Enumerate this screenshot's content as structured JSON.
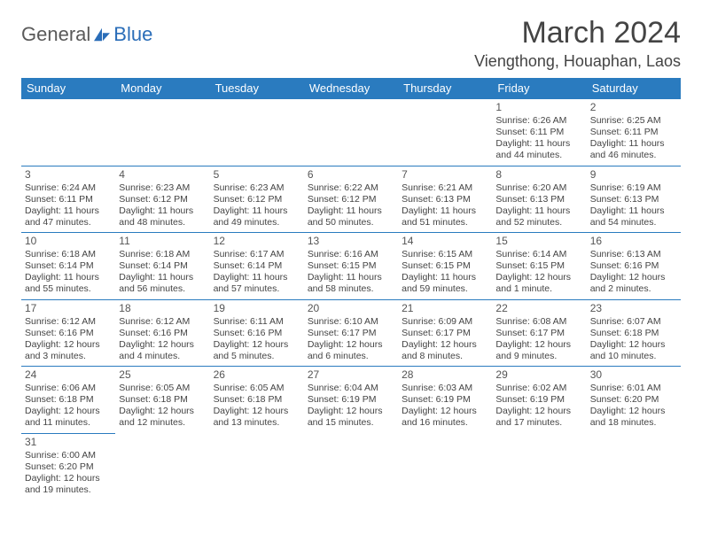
{
  "logo": {
    "text1": "General",
    "text2": "Blue"
  },
  "title": "March 2024",
  "location": "Viengthong, Houaphan, Laos",
  "columns": [
    "Sunday",
    "Monday",
    "Tuesday",
    "Wednesday",
    "Thursday",
    "Friday",
    "Saturday"
  ],
  "colors": {
    "header_bg": "#2a7bbf",
    "header_text": "#ffffff",
    "border": "#2a7bbf",
    "logo_gray": "#5a5a5a",
    "logo_blue": "#2a6db8"
  },
  "weeks": [
    [
      null,
      null,
      null,
      null,
      null,
      {
        "d": "1",
        "sr": "6:26 AM",
        "ss": "6:11 PM",
        "dl": "11 hours and 44 minutes."
      },
      {
        "d": "2",
        "sr": "6:25 AM",
        "ss": "6:11 PM",
        "dl": "11 hours and 46 minutes."
      }
    ],
    [
      {
        "d": "3",
        "sr": "6:24 AM",
        "ss": "6:11 PM",
        "dl": "11 hours and 47 minutes."
      },
      {
        "d": "4",
        "sr": "6:23 AM",
        "ss": "6:12 PM",
        "dl": "11 hours and 48 minutes."
      },
      {
        "d": "5",
        "sr": "6:23 AM",
        "ss": "6:12 PM",
        "dl": "11 hours and 49 minutes."
      },
      {
        "d": "6",
        "sr": "6:22 AM",
        "ss": "6:12 PM",
        "dl": "11 hours and 50 minutes."
      },
      {
        "d": "7",
        "sr": "6:21 AM",
        "ss": "6:13 PM",
        "dl": "11 hours and 51 minutes."
      },
      {
        "d": "8",
        "sr": "6:20 AM",
        "ss": "6:13 PM",
        "dl": "11 hours and 52 minutes."
      },
      {
        "d": "9",
        "sr": "6:19 AM",
        "ss": "6:13 PM",
        "dl": "11 hours and 54 minutes."
      }
    ],
    [
      {
        "d": "10",
        "sr": "6:18 AM",
        "ss": "6:14 PM",
        "dl": "11 hours and 55 minutes."
      },
      {
        "d": "11",
        "sr": "6:18 AM",
        "ss": "6:14 PM",
        "dl": "11 hours and 56 minutes."
      },
      {
        "d": "12",
        "sr": "6:17 AM",
        "ss": "6:14 PM",
        "dl": "11 hours and 57 minutes."
      },
      {
        "d": "13",
        "sr": "6:16 AM",
        "ss": "6:15 PM",
        "dl": "11 hours and 58 minutes."
      },
      {
        "d": "14",
        "sr": "6:15 AM",
        "ss": "6:15 PM",
        "dl": "11 hours and 59 minutes."
      },
      {
        "d": "15",
        "sr": "6:14 AM",
        "ss": "6:15 PM",
        "dl": "12 hours and 1 minute."
      },
      {
        "d": "16",
        "sr": "6:13 AM",
        "ss": "6:16 PM",
        "dl": "12 hours and 2 minutes."
      }
    ],
    [
      {
        "d": "17",
        "sr": "6:12 AM",
        "ss": "6:16 PM",
        "dl": "12 hours and 3 minutes."
      },
      {
        "d": "18",
        "sr": "6:12 AM",
        "ss": "6:16 PM",
        "dl": "12 hours and 4 minutes."
      },
      {
        "d": "19",
        "sr": "6:11 AM",
        "ss": "6:16 PM",
        "dl": "12 hours and 5 minutes."
      },
      {
        "d": "20",
        "sr": "6:10 AM",
        "ss": "6:17 PM",
        "dl": "12 hours and 6 minutes."
      },
      {
        "d": "21",
        "sr": "6:09 AM",
        "ss": "6:17 PM",
        "dl": "12 hours and 8 minutes."
      },
      {
        "d": "22",
        "sr": "6:08 AM",
        "ss": "6:17 PM",
        "dl": "12 hours and 9 minutes."
      },
      {
        "d": "23",
        "sr": "6:07 AM",
        "ss": "6:18 PM",
        "dl": "12 hours and 10 minutes."
      }
    ],
    [
      {
        "d": "24",
        "sr": "6:06 AM",
        "ss": "6:18 PM",
        "dl": "12 hours and 11 minutes."
      },
      {
        "d": "25",
        "sr": "6:05 AM",
        "ss": "6:18 PM",
        "dl": "12 hours and 12 minutes."
      },
      {
        "d": "26",
        "sr": "6:05 AM",
        "ss": "6:18 PM",
        "dl": "12 hours and 13 minutes."
      },
      {
        "d": "27",
        "sr": "6:04 AM",
        "ss": "6:19 PM",
        "dl": "12 hours and 15 minutes."
      },
      {
        "d": "28",
        "sr": "6:03 AM",
        "ss": "6:19 PM",
        "dl": "12 hours and 16 minutes."
      },
      {
        "d": "29",
        "sr": "6:02 AM",
        "ss": "6:19 PM",
        "dl": "12 hours and 17 minutes."
      },
      {
        "d": "30",
        "sr": "6:01 AM",
        "ss": "6:20 PM",
        "dl": "12 hours and 18 minutes."
      }
    ],
    [
      {
        "d": "31",
        "sr": "6:00 AM",
        "ss": "6:20 PM",
        "dl": "12 hours and 19 minutes."
      },
      null,
      null,
      null,
      null,
      null,
      null
    ]
  ],
  "labels": {
    "sunrise": "Sunrise:",
    "sunset": "Sunset:",
    "daylight": "Daylight:"
  }
}
